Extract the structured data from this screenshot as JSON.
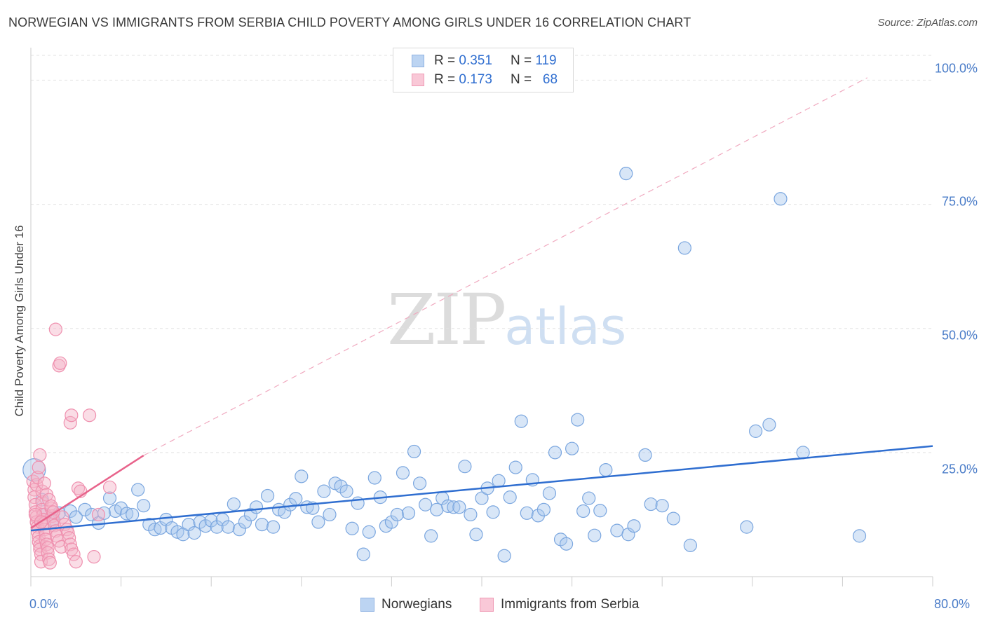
{
  "chart_data": {
    "type": "scatter",
    "title": "NORWEGIAN VS IMMIGRANTS FROM SERBIA CHILD POVERTY AMONG GIRLS UNDER 16 CORRELATION CHART",
    "source": "Source: ZipAtlas.com",
    "ylabel": "Child Poverty Among Girls Under 16",
    "xlim": [
      0,
      80
    ],
    "ylim": [
      0,
      105
    ],
    "y_ticks": [
      {
        "value": 25,
        "label": "25.0%"
      },
      {
        "value": 50,
        "label": "50.0%"
      },
      {
        "value": 75,
        "label": "75.0%"
      },
      {
        "value": 100,
        "label": "100.0%"
      }
    ],
    "x_tick_labels": {
      "min": "0.0%",
      "max": "80.0%"
    },
    "legend": [
      {
        "r_label": "R =",
        "r_value": "0.351",
        "n_label": "N =",
        "n_value": "119"
      },
      {
        "r_label": "R =",
        "r_value": "0.173",
        "n_label": "N =",
        "n_value": "68"
      }
    ],
    "series": [
      {
        "name": "Norwegians",
        "color": "#a9c8ee",
        "line_color": "#2f6ed0",
        "trend": {
          "x0": 0,
          "y0": 9.3,
          "x1": 80,
          "y1": 26.3
        },
        "points": [
          [
            0.3,
            21.5
          ],
          [
            1.0,
            15.5
          ],
          [
            1.3,
            12.5
          ],
          [
            2.0,
            11.5
          ],
          [
            2.5,
            12.8
          ],
          [
            3.5,
            13.2
          ],
          [
            4.0,
            12.0
          ],
          [
            4.8,
            13.5
          ],
          [
            5.4,
            12.5
          ],
          [
            6.0,
            10.8
          ],
          [
            6.5,
            12.8
          ],
          [
            7.0,
            15.8
          ],
          [
            7.5,
            13.2
          ],
          [
            8.0,
            13.8
          ],
          [
            8.5,
            12.7
          ],
          [
            9.0,
            12.5
          ],
          [
            9.5,
            17.5
          ],
          [
            10.0,
            14.3
          ],
          [
            10.5,
            10.5
          ],
          [
            11.0,
            9.5
          ],
          [
            11.5,
            9.8
          ],
          [
            12.0,
            11.5
          ],
          [
            12.5,
            9.8
          ],
          [
            13.0,
            9.0
          ],
          [
            13.5,
            8.5
          ],
          [
            14.0,
            10.5
          ],
          [
            14.5,
            8.8
          ],
          [
            15.0,
            11.0
          ],
          [
            15.5,
            10.2
          ],
          [
            16.0,
            11.3
          ],
          [
            16.5,
            10.0
          ],
          [
            17.0,
            11.5
          ],
          [
            17.5,
            10.0
          ],
          [
            18.0,
            14.6
          ],
          [
            18.5,
            9.5
          ],
          [
            19.0,
            11.0
          ],
          [
            19.5,
            12.5
          ],
          [
            20.0,
            14.0
          ],
          [
            20.5,
            10.5
          ],
          [
            21.0,
            16.3
          ],
          [
            21.5,
            10.0
          ],
          [
            22.0,
            13.5
          ],
          [
            22.5,
            13.0
          ],
          [
            23.0,
            14.5
          ],
          [
            23.5,
            15.7
          ],
          [
            24.0,
            20.2
          ],
          [
            24.5,
            14.0
          ],
          [
            25.0,
            13.8
          ],
          [
            25.5,
            11.0
          ],
          [
            26.0,
            17.2
          ],
          [
            26.5,
            12.5
          ],
          [
            27.0,
            18.8
          ],
          [
            27.5,
            18.2
          ],
          [
            28.0,
            17.2
          ],
          [
            28.5,
            9.7
          ],
          [
            29.0,
            14.8
          ],
          [
            29.5,
            4.5
          ],
          [
            30.0,
            9.0
          ],
          [
            30.5,
            19.9
          ],
          [
            31.0,
            16.0
          ],
          [
            31.5,
            10.2
          ],
          [
            32.0,
            11.0
          ],
          [
            32.5,
            12.5
          ],
          [
            33.0,
            20.9
          ],
          [
            33.5,
            12.8
          ],
          [
            34.0,
            25.2
          ],
          [
            34.5,
            18.8
          ],
          [
            35.0,
            14.5
          ],
          [
            35.5,
            8.2
          ],
          [
            36.0,
            13.5
          ],
          [
            36.5,
            15.8
          ],
          [
            37.0,
            14.2
          ],
          [
            37.5,
            14.0
          ],
          [
            38.0,
            14.0
          ],
          [
            38.5,
            22.2
          ],
          [
            39.0,
            12.5
          ],
          [
            39.5,
            8.5
          ],
          [
            40.0,
            15.8
          ],
          [
            40.5,
            17.8
          ],
          [
            41.0,
            13.0
          ],
          [
            41.5,
            19.3
          ],
          [
            42.0,
            4.2
          ],
          [
            42.5,
            16.0
          ],
          [
            43.0,
            22.0
          ],
          [
            43.5,
            31.3
          ],
          [
            44.0,
            12.8
          ],
          [
            44.5,
            19.5
          ],
          [
            45.0,
            12.3
          ],
          [
            45.5,
            13.5
          ],
          [
            46.0,
            16.8
          ],
          [
            46.5,
            25.0
          ],
          [
            47.0,
            7.5
          ],
          [
            47.5,
            6.6
          ],
          [
            48.0,
            25.8
          ],
          [
            48.5,
            31.6
          ],
          [
            49.0,
            13.2
          ],
          [
            49.5,
            15.8
          ],
          [
            50.0,
            8.3
          ],
          [
            50.5,
            13.3
          ],
          [
            51.0,
            21.5
          ],
          [
            52.0,
            9.3
          ],
          [
            52.8,
            81.2
          ],
          [
            53.0,
            8.5
          ],
          [
            53.5,
            10.2
          ],
          [
            54.5,
            24.5
          ],
          [
            55.0,
            14.6
          ],
          [
            56.0,
            14.3
          ],
          [
            57.0,
            11.7
          ],
          [
            58.0,
            66.2
          ],
          [
            58.5,
            6.3
          ],
          [
            63.5,
            10.0
          ],
          [
            64.3,
            29.3
          ],
          [
            65.5,
            30.6
          ],
          [
            66.5,
            76.1
          ],
          [
            68.5,
            25.0
          ],
          [
            73.5,
            8.2
          ]
        ]
      },
      {
        "name": "Immigrants from Serbia",
        "color": "#f5b3c8",
        "line_color": "#e8638b",
        "trend": {
          "x0": 0,
          "y0": 9.8,
          "x1": 10.0,
          "y1": 24.4
        },
        "trend_dashed": {
          "x0": 10.0,
          "y0": 24.4,
          "x1": 74.2,
          "y1": 100.5
        },
        "points": [
          [
            0.2,
            19.2
          ],
          [
            0.3,
            17.5
          ],
          [
            0.3,
            16.0
          ],
          [
            0.4,
            14.5
          ],
          [
            0.4,
            13.0
          ],
          [
            0.5,
            12.0
          ],
          [
            0.5,
            11.0
          ],
          [
            0.6,
            10.0
          ],
          [
            0.6,
            9.0
          ],
          [
            0.7,
            8.0
          ],
          [
            0.7,
            7.0
          ],
          [
            0.8,
            6.2
          ],
          [
            0.8,
            5.5
          ],
          [
            0.9,
            4.5
          ],
          [
            0.9,
            3.0
          ],
          [
            1.0,
            15.0
          ],
          [
            1.0,
            13.5
          ],
          [
            1.1,
            12.5
          ],
          [
            1.1,
            11.5
          ],
          [
            1.2,
            10.8
          ],
          [
            1.2,
            9.5
          ],
          [
            1.3,
            8.5
          ],
          [
            1.3,
            7.5
          ],
          [
            1.4,
            6.5
          ],
          [
            1.5,
            5.8
          ],
          [
            1.5,
            4.8
          ],
          [
            1.6,
            3.5
          ],
          [
            1.7,
            2.8
          ],
          [
            1.8,
            13.8
          ],
          [
            1.9,
            12.2
          ],
          [
            2.0,
            11.2
          ],
          [
            2.1,
            10.3
          ],
          [
            2.2,
            9.2
          ],
          [
            2.3,
            8.2
          ],
          [
            2.5,
            7.2
          ],
          [
            2.7,
            6.0
          ],
          [
            2.8,
            12.0
          ],
          [
            3.0,
            10.5
          ],
          [
            3.2,
            9.5
          ],
          [
            3.3,
            8.8
          ],
          [
            3.4,
            7.8
          ],
          [
            3.5,
            6.5
          ],
          [
            3.6,
            5.5
          ],
          [
            3.8,
            4.5
          ],
          [
            4.0,
            3.0
          ],
          [
            0.5,
            18.5
          ],
          [
            0.6,
            20.0
          ],
          [
            0.7,
            22.0
          ],
          [
            0.8,
            24.5
          ],
          [
            1.0,
            17.2
          ],
          [
            1.2,
            18.8
          ],
          [
            1.4,
            16.5
          ],
          [
            1.6,
            15.5
          ],
          [
            1.8,
            14.2
          ],
          [
            2.0,
            13.0
          ],
          [
            2.2,
            49.8
          ],
          [
            2.5,
            42.5
          ],
          [
            2.6,
            43.0
          ],
          [
            3.5,
            31.0
          ],
          [
            3.6,
            32.5
          ],
          [
            4.2,
            17.8
          ],
          [
            4.4,
            17.2
          ],
          [
            5.2,
            32.5
          ],
          [
            5.6,
            4.0
          ],
          [
            6.0,
            12.5
          ],
          [
            7.0,
            18.0
          ],
          [
            0.4,
            12.5
          ],
          [
            0.9,
            11.0
          ]
        ]
      }
    ]
  }
}
